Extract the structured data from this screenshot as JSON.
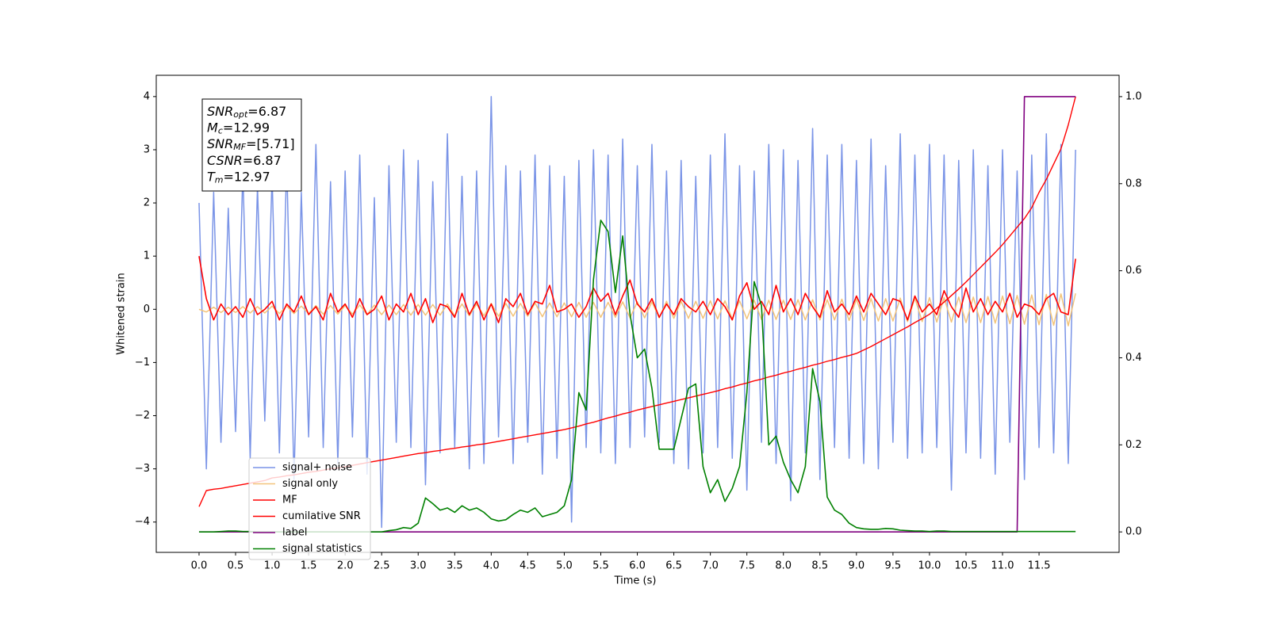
{
  "chart_data": {
    "type": "line",
    "xlabel": "Time (s)",
    "ylabel": "Whitened strain",
    "annotations": [
      {
        "symbol": "SNR",
        "subscript": "opt",
        "text": "=6.87"
      },
      {
        "symbol": "M",
        "subscript": "c",
        "text": "=12.99"
      },
      {
        "symbol": "SNR",
        "subscript": "MF",
        "text": "=[5.71]"
      },
      {
        "symbol": "CSNR",
        "text": "=6.87"
      },
      {
        "symbol": "T",
        "subscript": "m",
        "text": "=12.97"
      }
    ],
    "legend_loc": "lower left",
    "grid": false,
    "xlim": [
      -0.586,
      12.596
    ],
    "ylim": [
      -4.57,
      4.4
    ],
    "y2lim": [
      -0.047,
      1.049
    ],
    "xticks": [
      {
        "value": 0,
        "label": "0.0"
      },
      0.5,
      {
        "value": 1,
        "label": "1.0"
      },
      1.5,
      {
        "value": 2,
        "label": "2.0"
      },
      2.5,
      {
        "value": 3,
        "label": "3.0"
      },
      3.5,
      {
        "value": 4,
        "label": "4.0"
      },
      4.5,
      {
        "value": 5,
        "label": "5.0"
      },
      5.5,
      {
        "value": 6,
        "label": "6.0"
      },
      6.5,
      {
        "value": 7,
        "label": "7.0"
      },
      7.5,
      {
        "value": 8,
        "label": "8.0"
      },
      8.5,
      {
        "value": 9,
        "label": "9.0"
      },
      9.5,
      {
        "value": 10,
        "label": "10.0"
      },
      10.5,
      {
        "value": 11,
        "label": "11.0"
      },
      11.5
    ],
    "yticks": [
      {
        "value": -4,
        "label": "−4"
      },
      {
        "value": -3,
        "label": "−3"
      },
      {
        "value": -2,
        "label": "−2"
      },
      {
        "value": -1,
        "label": "−1"
      },
      0,
      1,
      2,
      3,
      4
    ],
    "y2ticks": [
      {
        "value": 0,
        "label": "0.0"
      },
      0.2,
      0.4,
      0.6,
      0.8,
      {
        "value": 1,
        "label": "1.0"
      }
    ],
    "x": [
      0,
      0.1,
      0.2,
      0.3,
      0.4,
      0.5,
      0.6,
      0.7,
      0.8,
      0.9,
      1,
      1.1,
      1.2,
      1.3,
      1.4,
      1.5,
      1.6,
      1.7,
      1.8,
      1.9,
      2,
      2.1,
      2.2,
      2.3,
      2.4,
      2.5,
      2.6,
      2.7,
      2.8,
      2.9,
      3,
      3.1,
      3.2,
      3.3,
      3.4,
      3.5,
      3.6,
      3.7,
      3.8,
      3.9,
      4,
      4.1,
      4.2,
      4.3,
      4.4,
      4.5,
      4.6,
      4.7,
      4.8,
      4.9,
      5,
      5.1,
      5.2,
      5.3,
      5.4,
      5.5,
      5.6,
      5.7,
      5.8,
      5.9,
      6,
      6.1,
      6.2,
      6.3,
      6.4,
      6.5,
      6.6,
      6.7,
      6.8,
      6.9,
      7,
      7.1,
      7.2,
      7.3,
      7.4,
      7.5,
      7.6,
      7.7,
      7.8,
      7.9,
      8,
      8.1,
      8.2,
      8.3,
      8.4,
      8.5,
      8.6,
      8.7,
      8.8,
      8.9,
      9,
      9.1,
      9.2,
      9.3,
      9.4,
      9.5,
      9.6,
      9.7,
      9.8,
      9.9,
      10,
      10.1,
      10.2,
      10.3,
      10.4,
      10.5,
      10.6,
      10.7,
      10.8,
      10.9,
      11,
      11.1,
      11.2,
      11.3,
      11.4,
      11.5,
      11.6,
      11.7,
      11.8,
      11.9,
      12
    ],
    "series": [
      {
        "name": "signal+ noise",
        "color": "#7a94e7",
        "axis": "y",
        "values": [
          2.0,
          -3.0,
          2.2,
          -2.5,
          1.9,
          -2.3,
          2.6,
          -2.8,
          2.3,
          -2.1,
          2.5,
          -2.7,
          2.8,
          -3.2,
          2.2,
          -2.4,
          3.1,
          -2.6,
          2.4,
          -2.9,
          2.6,
          -2.4,
          2.9,
          -3.1,
          2.1,
          -4.1,
          2.7,
          -2.5,
          3.0,
          -2.6,
          2.8,
          -3.3,
          2.4,
          -2.7,
          3.3,
          -2.6,
          2.5,
          -3.0,
          2.6,
          -2.9,
          4.0,
          -2.4,
          2.7,
          -2.9,
          2.6,
          -2.5,
          2.9,
          -3.1,
          2.7,
          -2.8,
          2.5,
          -4.0,
          2.8,
          -2.6,
          3.0,
          -2.7,
          2.9,
          -2.9,
          3.2,
          -2.6,
          2.7,
          -2.4,
          3.1,
          -2.5,
          2.6,
          -2.9,
          2.8,
          -3.0,
          2.5,
          -2.7,
          2.9,
          -2.6,
          3.3,
          -2.8,
          2.7,
          -3.4,
          2.6,
          -2.5,
          3.1,
          -2.9,
          3.0,
          -3.6,
          2.8,
          -2.7,
          3.4,
          -3.2,
          2.9,
          -2.6,
          3.1,
          -2.8,
          2.8,
          -2.9,
          3.2,
          -3.0,
          2.7,
          -2.5,
          3.3,
          -2.8,
          2.9,
          -2.7,
          3.1,
          -2.6,
          2.9,
          -3.4,
          2.8,
          -2.7,
          3.0,
          -2.8,
          2.7,
          -3.1,
          3.0,
          -2.5,
          2.6,
          -3.2,
          2.9,
          -2.6,
          3.3,
          -2.7,
          3.1,
          -2.9,
          3.0
        ]
      },
      {
        "name": "signal only",
        "color": "#f3c47a",
        "axis": "y",
        "values": [
          0.0,
          -0.05,
          0.04,
          -0.06,
          0.04,
          -0.06,
          0.05,
          -0.07,
          0.05,
          -0.07,
          0.06,
          -0.08,
          0.06,
          -0.08,
          0.06,
          -0.08,
          0.07,
          -0.09,
          0.07,
          -0.09,
          0.07,
          -0.09,
          0.08,
          -0.1,
          0.08,
          -0.1,
          0.08,
          -0.1,
          0.09,
          -0.11,
          0.09,
          -0.11,
          0.09,
          -0.11,
          0.1,
          -0.12,
          0.1,
          -0.12,
          0.1,
          -0.12,
          0.11,
          -0.13,
          0.11,
          -0.13,
          0.11,
          -0.13,
          0.12,
          -0.14,
          0.12,
          -0.14,
          0.12,
          -0.14,
          0.13,
          -0.15,
          0.13,
          -0.15,
          0.13,
          -0.15,
          0.14,
          -0.16,
          0.14,
          -0.16,
          0.14,
          -0.16,
          0.15,
          -0.17,
          0.15,
          -0.17,
          0.15,
          -0.17,
          0.16,
          -0.18,
          0.16,
          -0.18,
          0.16,
          -0.18,
          0.17,
          -0.19,
          0.17,
          -0.19,
          0.17,
          -0.19,
          0.18,
          -0.2,
          0.18,
          -0.2,
          0.18,
          -0.2,
          0.19,
          -0.21,
          0.19,
          -0.21,
          0.2,
          -0.22,
          0.2,
          -0.22,
          0.21,
          -0.23,
          0.21,
          -0.23,
          0.22,
          -0.24,
          0.22,
          -0.24,
          0.23,
          -0.25,
          0.23,
          -0.25,
          0.24,
          -0.26,
          0.25,
          -0.27,
          0.26,
          -0.28,
          0.27,
          -0.29,
          0.28,
          -0.3,
          0.29,
          -0.31,
          0.3
        ]
      },
      {
        "name": "MF",
        "color": "#ff0000",
        "axis": "y",
        "values": [
          1.0,
          0.2,
          -0.2,
          0.1,
          -0.1,
          0.05,
          -0.15,
          0.2,
          -0.1,
          0.0,
          0.15,
          -0.2,
          0.1,
          -0.05,
          0.25,
          -0.1,
          0.05,
          -0.2,
          0.3,
          -0.05,
          0.1,
          -0.15,
          0.2,
          -0.1,
          0.0,
          0.25,
          -0.2,
          0.1,
          -0.05,
          0.3,
          -0.1,
          0.2,
          -0.25,
          0.1,
          0.05,
          -0.15,
          0.3,
          -0.1,
          0.15,
          -0.2,
          0.1,
          -0.25,
          0.2,
          0.05,
          0.3,
          -0.1,
          0.15,
          0.1,
          0.45,
          -0.05,
          0.0,
          0.1,
          -0.15,
          0.05,
          0.4,
          0.15,
          0.3,
          -0.1,
          0.25,
          0.55,
          0.1,
          -0.05,
          0.2,
          -0.15,
          0.1,
          -0.1,
          0.2,
          0.05,
          -0.05,
          0.15,
          -0.1,
          0.2,
          0.05,
          -0.2,
          0.25,
          0.5,
          0.0,
          0.15,
          -0.1,
          0.45,
          -0.05,
          0.2,
          -0.1,
          0.3,
          0.05,
          -0.15,
          0.35,
          -0.05,
          0.1,
          -0.1,
          0.25,
          -0.05,
          0.3,
          0.1,
          -0.1,
          0.2,
          0.15,
          -0.2,
          0.25,
          -0.05,
          0.1,
          -0.1,
          0.35,
          0.05,
          -0.15,
          0.4,
          -0.05,
          0.2,
          -0.1,
          0.15,
          -0.05,
          0.3,
          -0.15,
          0.1,
          0.05,
          -0.1,
          0.2,
          0.3,
          -0.05,
          -0.1,
          0.95
        ]
      },
      {
        "name": "cumilative SNR",
        "color": "#ff0000",
        "axis": "y2",
        "values": [
          0.058,
          0.095,
          0.098,
          0.1,
          0.103,
          0.106,
          0.109,
          0.112,
          0.115,
          0.118,
          0.124,
          0.126,
          0.129,
          0.131,
          0.134,
          0.137,
          0.139,
          0.142,
          0.145,
          0.147,
          0.15,
          0.153,
          0.156,
          0.159,
          0.162,
          0.165,
          0.168,
          0.171,
          0.174,
          0.177,
          0.18,
          0.182,
          0.185,
          0.187,
          0.19,
          0.192,
          0.195,
          0.197,
          0.2,
          0.202,
          0.205,
          0.208,
          0.211,
          0.214,
          0.217,
          0.22,
          0.223,
          0.226,
          0.229,
          0.232,
          0.235,
          0.239,
          0.243,
          0.248,
          0.252,
          0.257,
          0.262,
          0.266,
          0.271,
          0.275,
          0.28,
          0.284,
          0.288,
          0.292,
          0.296,
          0.3,
          0.304,
          0.308,
          0.312,
          0.316,
          0.32,
          0.324,
          0.329,
          0.333,
          0.338,
          0.342,
          0.347,
          0.351,
          0.356,
          0.36,
          0.365,
          0.369,
          0.374,
          0.378,
          0.383,
          0.387,
          0.392,
          0.396,
          0.401,
          0.405,
          0.41,
          0.418,
          0.426,
          0.435,
          0.444,
          0.453,
          0.462,
          0.471,
          0.481,
          0.49,
          0.5,
          0.514,
          0.528,
          0.543,
          0.558,
          0.574,
          0.591,
          0.608,
          0.625,
          0.642,
          0.66,
          0.68,
          0.7,
          0.72,
          0.745,
          0.78,
          0.81,
          0.845,
          0.88,
          0.935,
          1.0
        ]
      },
      {
        "name": "label",
        "color": "#800080",
        "axis": "y2",
        "values": [
          0,
          0,
          0,
          0,
          0,
          0,
          0,
          0,
          0,
          0,
          0,
          0,
          0,
          0,
          0,
          0,
          0,
          0,
          0,
          0,
          0,
          0,
          0,
          0,
          0,
          0,
          0,
          0,
          0,
          0,
          0,
          0,
          0,
          0,
          0,
          0,
          0,
          0,
          0,
          0,
          0,
          0,
          0,
          0,
          0,
          0,
          0,
          0,
          0,
          0,
          0,
          0,
          0,
          0,
          0,
          0,
          0,
          0,
          0,
          0,
          0,
          0,
          0,
          0,
          0,
          0,
          0,
          0,
          0,
          0,
          0,
          0,
          0,
          0,
          0,
          0,
          0,
          0,
          0,
          0,
          0,
          0,
          0,
          0,
          0,
          0,
          0,
          0,
          0,
          0,
          0,
          0,
          0,
          0,
          0,
          0,
          0,
          0,
          0,
          0,
          0,
          0,
          0,
          0,
          0,
          0,
          0,
          0,
          0,
          0,
          0,
          0,
          0,
          1,
          1,
          1,
          1,
          1,
          1,
          1,
          1
        ]
      },
      {
        "name": "signal statistics",
        "color": "#008000",
        "axis": "y2",
        "values": [
          0,
          0,
          0,
          0.001,
          0.002,
          0.002,
          0.001,
          0.001,
          0,
          0,
          0,
          0,
          0,
          0,
          0,
          0,
          0,
          0,
          0,
          0,
          0,
          0,
          0,
          0,
          0,
          0,
          0.003,
          0.005,
          0.01,
          0.008,
          0.02,
          0.078,
          0.065,
          0.05,
          0.055,
          0.045,
          0.06,
          0.05,
          0.055,
          0.045,
          0.03,
          0.025,
          0.028,
          0.04,
          0.05,
          0.045,
          0.055,
          0.035,
          0.04,
          0.045,
          0.06,
          0.12,
          0.32,
          0.28,
          0.58,
          0.716,
          0.69,
          0.55,
          0.68,
          0.5,
          0.4,
          0.42,
          0.33,
          0.19,
          0.19,
          0.19,
          0.26,
          0.33,
          0.34,
          0.15,
          0.09,
          0.12,
          0.07,
          0.1,
          0.15,
          0.32,
          0.575,
          0.52,
          0.2,
          0.22,
          0.16,
          0.12,
          0.09,
          0.15,
          0.375,
          0.3,
          0.08,
          0.05,
          0.04,
          0.02,
          0.01,
          0.007,
          0.006,
          0.006,
          0.008,
          0.007,
          0.004,
          0.003,
          0.002,
          0.002,
          0.001,
          0.002,
          0.002,
          0.001,
          0.001,
          0.001,
          0.001,
          0.001,
          0.001,
          0.001,
          0.001,
          0.001,
          0.001,
          0.001,
          0.001,
          0.001,
          0.001,
          0.001,
          0.001,
          0.001,
          0.001
        ]
      }
    ]
  }
}
